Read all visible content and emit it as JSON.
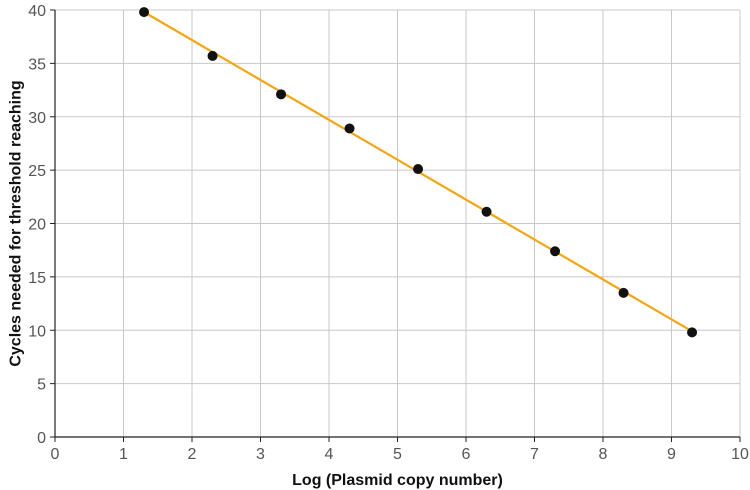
{
  "chart_data": {
    "type": "scatter",
    "title": "",
    "xlabel": "Log (Plasmid copy number)",
    "ylabel": "Cycles needed for threshold reaching",
    "xlim": [
      0,
      10
    ],
    "ylim": [
      0,
      40
    ],
    "xticks": [
      "0",
      "1",
      "2",
      "3",
      "4",
      "5",
      "6",
      "7",
      "8",
      "9",
      "10"
    ],
    "yticks": [
      "0",
      "5",
      "10",
      "15",
      "20",
      "25",
      "30",
      "35",
      "40"
    ],
    "grid": true,
    "legend": "none",
    "series": [
      {
        "x": [
          1.3,
          2.3,
          3.3,
          4.3,
          5.3,
          6.3,
          7.3,
          8.3,
          9.3
        ],
        "y": [
          39.8,
          35.7,
          32.1,
          28.9,
          25.1,
          21.1,
          17.4,
          13.5,
          9.8
        ],
        "color": "#111111"
      }
    ],
    "trendline": {
      "x": [
        1.3,
        9.3
      ],
      "y": [
        39.8,
        9.9
      ],
      "color": "#f5a50f"
    }
  }
}
